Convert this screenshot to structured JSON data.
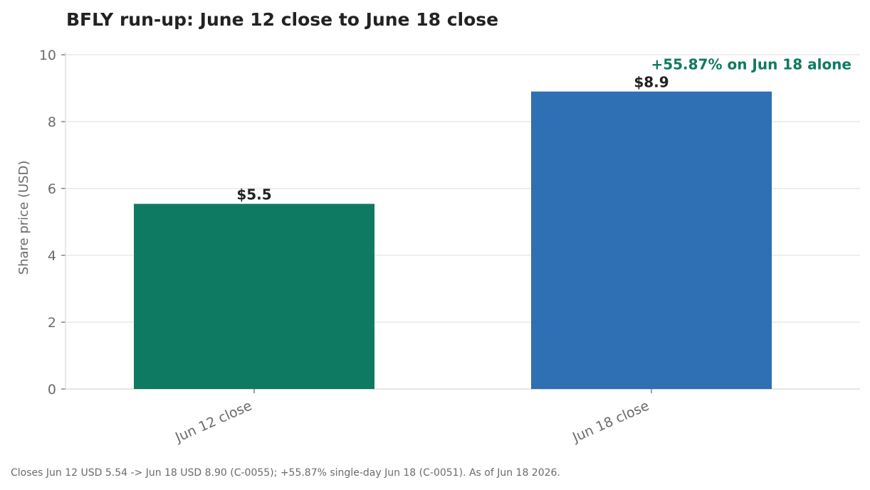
{
  "chart_data": {
    "type": "bar",
    "title": "BFLY run-up: June 12 close to June 18 close",
    "xlabel": "",
    "ylabel": "Share price (USD)",
    "ylim": [
      0,
      10
    ],
    "yticks": [
      0,
      2,
      4,
      6,
      8,
      10
    ],
    "grid": true,
    "categories": [
      "Jun 12 close",
      "Jun 18 close"
    ],
    "values": [
      5.54,
      8.9
    ],
    "value_labels": [
      "$5.5",
      "$8.9"
    ],
    "bar_colors": [
      "#0f7a62",
      "#2f6fb3"
    ],
    "annotation": {
      "text": "+55.87% on Jun 18 alone",
      "category": "Jun 18 close",
      "color": "#0f7a62"
    },
    "footnote": "Closes Jun 12 USD 5.54 -> Jun 18 USD 8.90 (C-0055); +55.87% single-day Jun 18 (C-0051). As of Jun 18 2026."
  }
}
